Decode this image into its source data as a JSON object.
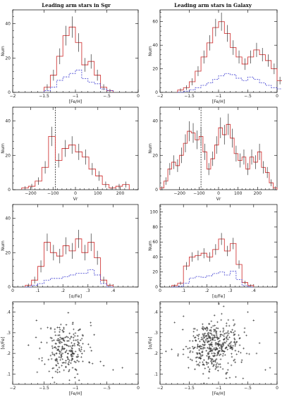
{
  "colors": {
    "red": "#d23c3c",
    "blue": "#3a3ad0",
    "error": "#333333",
    "scatter": "#333333",
    "ref": "#000000"
  },
  "chart_data": [
    {
      "id": "sgr-feh",
      "type": "histogram",
      "title": "Leading arm stars in Sgr",
      "xlabel": "[Fe/H]",
      "ylabel": "Num",
      "xlim": [
        -2,
        0
      ],
      "ylim": [
        0,
        48
      ],
      "xticks": [
        -2,
        -1.5,
        -1,
        -0.5,
        0
      ],
      "yticks": [
        0,
        20,
        40
      ],
      "xticks_fmt": "feh",
      "bins": {
        "start": -1.5,
        "width": 0.1
      },
      "series": [
        {
          "style": "solid",
          "counts": [
            3,
            10,
            21,
            33,
            38,
            29,
            16,
            18,
            10,
            3,
            1
          ],
          "errors": [
            1.7,
            3.2,
            4.6,
            5.7,
            6.2,
            5.4,
            4,
            4.2,
            3.2,
            1.7,
            1
          ]
        },
        {
          "style": "dashed",
          "counts": [
            1,
            3,
            7,
            9,
            11,
            13,
            8,
            6,
            5,
            2,
            1
          ]
        }
      ]
    },
    {
      "id": "gal-feh",
      "type": "histogram",
      "title": "Leading arm stars in Galaxy",
      "xlabel": "[Fe/H]",
      "ylabel": "Num",
      "xlim": [
        -2,
        0
      ],
      "ylim": [
        0,
        70
      ],
      "xticks": [
        -2,
        -1.5,
        -1,
        -0.5,
        0
      ],
      "yticks": [
        0,
        20,
        40,
        60
      ],
      "xticks_fmt": "feh",
      "bins": {
        "start": -1.7,
        "width": 0.1
      },
      "series": [
        {
          "style": "solid",
          "counts": [
            2,
            4,
            9,
            18,
            30,
            42,
            55,
            60,
            50,
            38,
            30,
            24,
            30,
            36,
            32,
            27,
            20,
            10,
            5,
            2
          ],
          "errors": [
            1.4,
            2,
            3,
            4.2,
            5.5,
            6.5,
            7.4,
            7.7,
            7.1,
            6.2,
            5.5,
            4.9,
            5.5,
            6,
            5.7,
            5.2,
            4.5,
            3.2,
            2.2,
            1.4
          ]
        },
        {
          "style": "dashed",
          "counts": [
            0,
            1,
            2,
            4,
            6,
            8,
            11,
            14,
            16,
            15,
            12,
            10,
            13,
            11,
            8,
            6,
            4,
            3,
            1,
            1
          ]
        }
      ]
    },
    {
      "id": "sgr-vr",
      "type": "histogram",
      "xlabel": "Vr",
      "ylabel": "Num",
      "xlim": [
        -280,
        280
      ],
      "ylim": [
        0,
        48
      ],
      "xticks": [
        -200,
        -100,
        0,
        100,
        200
      ],
      "yticks": [
        0,
        20,
        40
      ],
      "xticks_fmt": "int",
      "vline": -90,
      "bins": {
        "start": -240,
        "width": 30
      },
      "series": [
        {
          "style": "solid",
          "counts": [
            1,
            2,
            5,
            13,
            31,
            17,
            24,
            26,
            22,
            19,
            12,
            8,
            3,
            1,
            2,
            3
          ],
          "errors": [
            1,
            1.4,
            2.2,
            3.6,
            5.6,
            4.1,
            4.9,
            5.1,
            4.7,
            4.4,
            3.5,
            2.8,
            1.7,
            1,
            1.4,
            1.7
          ]
        }
      ]
    },
    {
      "id": "gal-vr",
      "type": "histogram",
      "xlabel": "Vr",
      "ylabel": "Num",
      "xlim": [
        -300,
        300
      ],
      "ylim": [
        0,
        48
      ],
      "xticks": [
        -200,
        -100,
        0,
        100,
        200
      ],
      "yticks": [
        0,
        20,
        40
      ],
      "xticks_fmt": "int",
      "vline": -90,
      "bins": {
        "start": -300,
        "width": 20
      },
      "series": [
        {
          "style": "solid",
          "counts": [
            1,
            5,
            12,
            16,
            14,
            20,
            27,
            34,
            33,
            29,
            31,
            22,
            12,
            18,
            26,
            36,
            32,
            38,
            30,
            21,
            17,
            19,
            12,
            19,
            16,
            22,
            13,
            10,
            4,
            1
          ],
          "errors": [
            1,
            2.2,
            3.5,
            4,
            3.7,
            4.5,
            5.2,
            5.8,
            5.7,
            5.4,
            5.6,
            4.7,
            3.5,
            4.2,
            5.1,
            6,
            5.7,
            6.2,
            5.5,
            4.6,
            4.1,
            4.4,
            3.5,
            4.4,
            4,
            4.7,
            3.6,
            3.2,
            2,
            1
          ]
        }
      ]
    },
    {
      "id": "sgr-alpha",
      "type": "histogram",
      "xlabel": "[α/Fe]",
      "ylabel": "Num",
      "xlim": [
        0,
        0.5
      ],
      "ylim": [
        0,
        48
      ],
      "xticks": [
        0,
        0.1,
        0.2,
        0.3,
        0.4
      ],
      "yticks": [
        0,
        20,
        40
      ],
      "xticks_fmt": "dec",
      "bins": {
        "start": 0.05,
        "width": 0.025
      },
      "series": [
        {
          "style": "solid",
          "counts": [
            1,
            4,
            12,
            26,
            20,
            18,
            24,
            21,
            28,
            20,
            26,
            17,
            4,
            1
          ],
          "errors": [
            1,
            2,
            3.5,
            5.1,
            4.5,
            4.2,
            4.9,
            4.6,
            5.3,
            4.5,
            5.1,
            4.1,
            2,
            1
          ]
        },
        {
          "style": "dashed",
          "counts": [
            0,
            1,
            2,
            4,
            5,
            5,
            6,
            7,
            8,
            8,
            10,
            7,
            2,
            0
          ]
        }
      ]
    },
    {
      "id": "gal-alpha",
      "type": "histogram",
      "xlabel": "[α/Fe]",
      "ylabel": "Num",
      "xlim": [
        0,
        0.5
      ],
      "ylim": [
        0,
        110
      ],
      "xticks": [
        0,
        0.1,
        0.2,
        0.3,
        0.4
      ],
      "yticks": [
        0,
        20,
        40,
        60,
        80,
        100
      ],
      "xticks_fmt": "dec",
      "bins": {
        "start": 0.05,
        "width": 0.025
      },
      "series": [
        {
          "style": "solid",
          "counts": [
            2,
            5,
            28,
            40,
            42,
            45,
            40,
            50,
            64,
            48,
            58,
            30,
            6,
            2
          ],
          "errors": [
            1.4,
            2.2,
            5.3,
            6.3,
            6.5,
            6.7,
            6.3,
            7.1,
            8,
            6.9,
            7.6,
            5.5,
            2.4,
            1.4
          ]
        },
        {
          "style": "dashed",
          "counts": [
            0,
            1,
            5,
            12,
            14,
            13,
            15,
            18,
            20,
            16,
            21,
            10,
            2,
            0
          ]
        }
      ]
    },
    {
      "id": "sgr-scatter",
      "type": "scatter",
      "xlabel": "[Fe/H]",
      "ylabel": "[α/Fe]",
      "xlim": [
        -2,
        0
      ],
      "ylim": [
        0.05,
        0.45
      ],
      "xticks": [
        -2,
        -1.5,
        -1,
        -0.5,
        0
      ],
      "yticks": [
        0.1,
        0.2,
        0.3,
        0.4
      ],
      "xticks_fmt": "feh",
      "yticks_fmt": "dec",
      "cluster": {
        "cx": -1.15,
        "sx": 0.17,
        "cy": 0.22,
        "sy": 0.065,
        "n": 240,
        "seed": 11
      },
      "points": [
        [
          -1.75,
          0.24
        ],
        [
          -0.25,
          0.13
        ],
        [
          -0.4,
          0.12
        ],
        [
          -0.55,
          0.14
        ],
        [
          -1.62,
          0.36
        ],
        [
          -1.55,
          0.32
        ],
        [
          -0.7,
          0.29
        ],
        [
          -0.6,
          0.16
        ]
      ]
    },
    {
      "id": "gal-scatter",
      "type": "scatter",
      "xlabel": "[Fe/H]",
      "ylabel": "[α/Fe]",
      "xlim": [
        -2,
        0
      ],
      "ylim": [
        0.05,
        0.45
      ],
      "xticks": [
        -2,
        -1.5,
        -1,
        -0.5,
        0
      ],
      "yticks": [
        0.1,
        0.2,
        0.3,
        0.4
      ],
      "xticks_fmt": "feh",
      "yticks_fmt": "dec",
      "cluster": {
        "cx": -1.1,
        "sx": 0.22,
        "cy": 0.235,
        "sy": 0.06,
        "n": 420,
        "seed": 29
      },
      "points": [
        [
          -1.75,
          0.35
        ],
        [
          -1.8,
          0.22
        ],
        [
          -1.9,
          0.21
        ],
        [
          -0.12,
          0.13
        ],
        [
          -0.2,
          0.12
        ],
        [
          -0.3,
          0.25
        ],
        [
          -0.4,
          0.36
        ],
        [
          -0.35,
          0.2
        ],
        [
          -1.6,
          0.38
        ],
        [
          -0.5,
          0.4
        ]
      ]
    }
  ]
}
